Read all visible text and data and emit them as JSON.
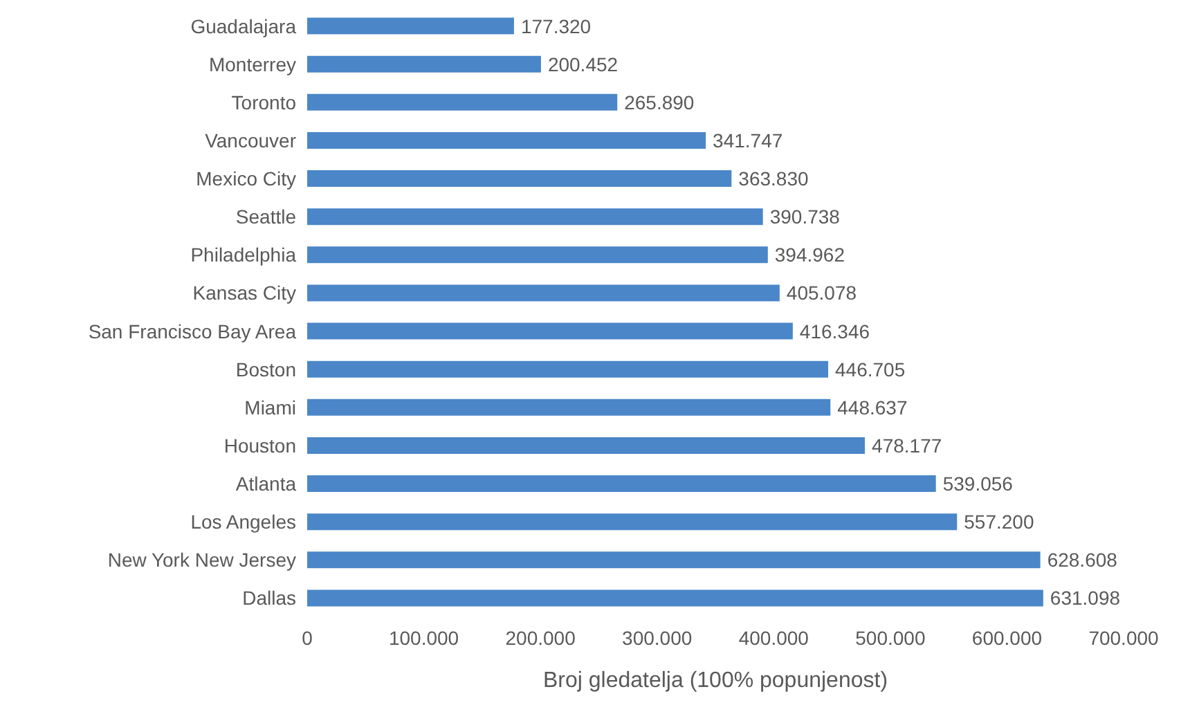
{
  "chart_data": {
    "type": "bar",
    "orientation": "horizontal",
    "xlabel": "Broj gledatelja (100% popunjenost)",
    "categories": [
      "Guadalajara",
      "Monterrey",
      "Toronto",
      "Vancouver",
      "Mexico City",
      "Seattle",
      "Philadelphia",
      "Kansas City",
      "San Francisco Bay Area",
      "Boston",
      "Miami",
      "Houston",
      "Atlanta",
      "Los Angeles",
      "New York New Jersey",
      "Dallas"
    ],
    "values": [
      177320,
      200452,
      265890,
      341747,
      363830,
      390738,
      394962,
      405078,
      416346,
      446705,
      448637,
      478177,
      539056,
      557200,
      628608,
      631098
    ],
    "value_labels": [
      "177.320",
      "200.452",
      "265.890",
      "341.747",
      "363.830",
      "390.738",
      "394.962",
      "405.078",
      "416.346",
      "446.705",
      "448.637",
      "478.177",
      "539.056",
      "557.200",
      "628.608",
      "631.098"
    ],
    "color": "#4a86c8",
    "xlim": [
      0,
      700000
    ],
    "xticks": [
      0,
      {
        "value": 100000,
        "label": "100.000"
      },
      {
        "value": 200000,
        "label": "200.000"
      },
      {
        "value": 300000,
        "label": "300.000"
      },
      {
        "value": 400000,
        "label": "400.000"
      },
      {
        "value": 500000,
        "label": "500.000"
      },
      {
        "value": 600000,
        "label": "600.000"
      },
      {
        "value": 700000,
        "label": "700.000"
      }
    ],
    "grid": false
  }
}
